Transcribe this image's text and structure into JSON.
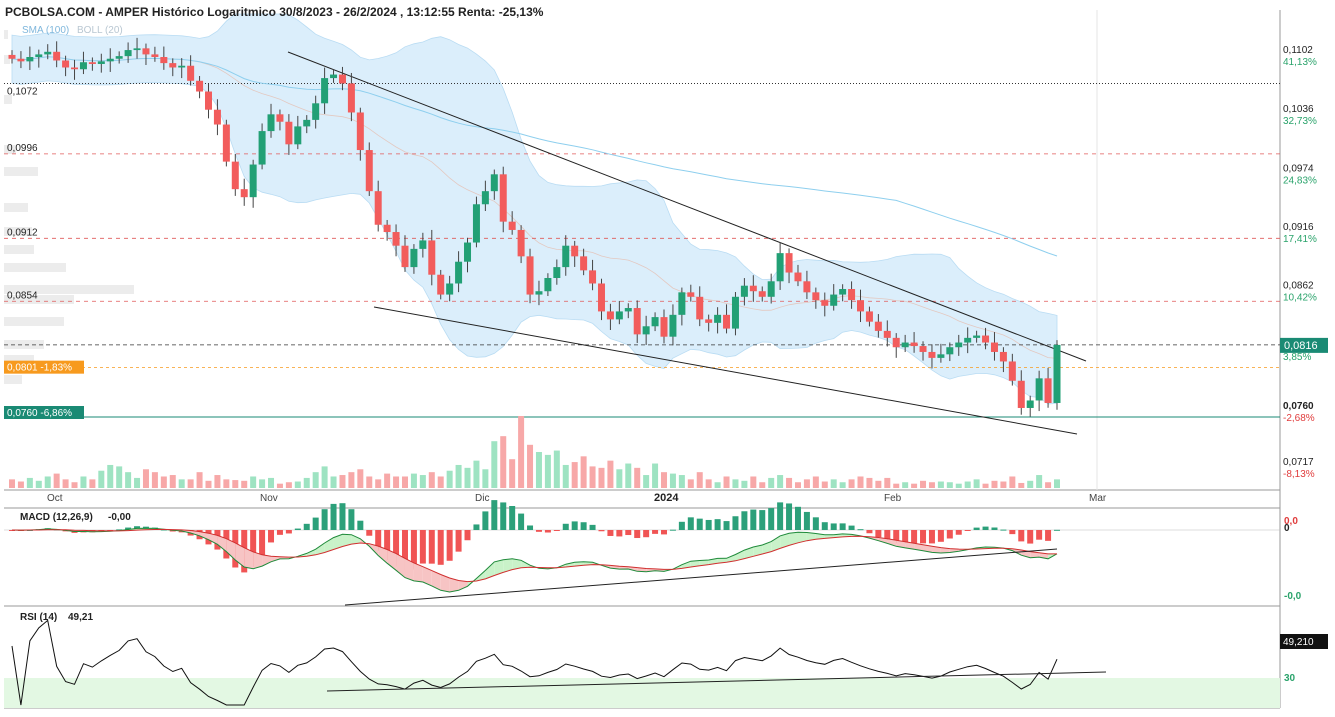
{
  "header": {
    "title": "PCBOLSA.COM - AMPER Histórico Logaritmico 30/8/2023 - 26/2/2024 , 13:12:55 Renta: -25,13%"
  },
  "colors": {
    "up": "#22a075",
    "down": "#f25c5c",
    "band_fill": "#dbeefb",
    "sma": "#8ecfee",
    "teal_line": "#1a8a74",
    "orange_tag": "#f79a1e",
    "pos_pct": "#2aa36b",
    "neg_pct": "#e03c3c",
    "macd_pos": "#2ca07a",
    "macd_neg": "#f05454",
    "rsi_zone": "#e3f8e3"
  },
  "chart_data": [
    {
      "type": "candlestick",
      "title": "PCBOLSA.COM - AMPER Histórico Logaritmico 30/8/2023 - 26/2/2024 , 13:12:55 Renta: -25,13%",
      "scale": "log",
      "legend": [
        "SMA (100)",
        "BOLL (20)"
      ],
      "x_labels": [
        "Oct",
        "Nov",
        "Dic",
        "2024",
        "Feb",
        "Mar"
      ],
      "ylim": [
        0.0712,
        0.113
      ],
      "y_ticks": [
        {
          "value": 0.1102,
          "label": "0,1102",
          "pct": "41,13%"
        },
        {
          "value": 0.1036,
          "label": "0,1036",
          "pct": "32,73%"
        },
        {
          "value": 0.0974,
          "label": "0,0974",
          "pct": "24,83%"
        },
        {
          "value": 0.0916,
          "label": "0,0916",
          "pct": "17,41%"
        },
        {
          "value": 0.0862,
          "label": "0,0862",
          "pct": "10,42%"
        },
        {
          "value": 0.076,
          "label": "0,0760",
          "pct": "-2,68%"
        },
        {
          "value": 0.0717,
          "label": "0,0717",
          "pct": "-8,13%"
        }
      ],
      "levels": [
        {
          "value": 0.1072,
          "label": "0,1072",
          "style": "dotted"
        },
        {
          "value": 0.0996,
          "label": "0,0996",
          "style": "dashed"
        },
        {
          "value": 0.0912,
          "label": "0,0912",
          "style": "dashed"
        },
        {
          "value": 0.0854,
          "label": "0,0854",
          "style": "dashed"
        },
        {
          "value": 0.0816,
          "label": "0,0816",
          "style": "current"
        },
        {
          "value": 0.0801,
          "label": "0,0801 -1,83%",
          "style": "orange"
        },
        {
          "value": 0.076,
          "label": "0,0760 -6,86%",
          "style": "teal"
        }
      ],
      "last_price": "0,0816",
      "last_pct": "3,85%",
      "close": [
        0.11,
        0.1097,
        0.1102,
        0.1105,
        0.1108,
        0.1098,
        0.109,
        0.1088,
        0.1096,
        0.1094,
        0.1097,
        0.11,
        0.1103,
        0.111,
        0.1112,
        0.1105,
        0.1102,
        0.1095,
        0.109,
        0.1092,
        0.1075,
        0.1063,
        0.1043,
        0.1027,
        0.0988,
        0.096,
        0.0952,
        0.0985,
        0.102,
        0.1038,
        0.103,
        0.1006,
        0.1025,
        0.1032,
        0.105,
        0.1078,
        0.1082,
        0.1072,
        0.104,
        0.1,
        0.0958,
        0.0925,
        0.0918,
        0.0905,
        0.0885,
        0.0902,
        0.091,
        0.0878,
        0.086,
        0.087,
        0.089,
        0.0908,
        0.0945,
        0.0958,
        0.0975,
        0.0928,
        0.092,
        0.0895,
        0.086,
        0.0863,
        0.0875,
        0.0885,
        0.0905,
        0.0895,
        0.0882,
        0.087,
        0.0845,
        0.0838,
        0.0845,
        0.0848,
        0.0825,
        0.0832,
        0.084,
        0.0823,
        0.0842,
        0.0862,
        0.0858,
        0.0838,
        0.0835,
        0.0842,
        0.083,
        0.0858,
        0.0868,
        0.0863,
        0.0858,
        0.0872,
        0.0898,
        0.088,
        0.0872,
        0.0862,
        0.0855,
        0.085,
        0.086,
        0.0865,
        0.0855,
        0.0845,
        0.0836,
        0.0828,
        0.0822,
        0.0814,
        0.0818,
        0.0815,
        0.081,
        0.0805,
        0.0808,
        0.0814,
        0.0818,
        0.0822,
        0.0824,
        0.0818,
        0.081,
        0.0802,
        0.0786,
        0.0764,
        0.077,
        0.0788,
        0.0768,
        0.0816
      ],
      "volume": [
        1.2,
        0.9,
        1.4,
        1.0,
        1.6,
        2.0,
        1.2,
        0.8,
        1.6,
        1.2,
        2.4,
        3.2,
        3.0,
        2.2,
        1.4,
        2.6,
        2.2,
        1.6,
        1.8,
        1.2,
        1.2,
        2.2,
        1.0,
        1.8,
        1.2,
        1.1,
        1.0,
        1.6,
        1.2,
        1.4,
        0.6,
        0.8,
        0.9,
        1.4,
        2.2,
        3.0,
        1.6,
        1.8,
        2.2,
        2.6,
        1.6,
        1.2,
        2.0,
        1.6,
        1.6,
        2.0,
        1.8,
        2.2,
        1.6,
        2.4,
        3.2,
        2.8,
        3.8,
        2.6,
        6.5,
        7.2,
        4.0,
        10.0,
        6.0,
        5.0,
        4.6,
        5.2,
        3.2,
        3.6,
        4.4,
        3.0,
        2.8,
        3.8,
        2.6,
        3.4,
        2.8,
        1.8,
        3.4,
        2.2,
        2.0,
        1.8,
        1.2,
        2.2,
        1.2,
        0.8,
        1.6,
        1.2,
        1.0,
        1.6,
        0.8,
        1.4,
        1.8,
        1.4,
        0.8,
        1.2,
        1.6,
        0.9,
        1.2,
        0.8,
        1.2,
        1.6,
        1.4,
        1.0,
        1.4,
        0.6,
        0.8,
        0.6,
        1.0,
        0.8,
        0.9,
        0.8,
        0.6,
        0.9,
        1.2,
        0.6,
        1.0,
        0.9,
        1.6,
        0.7,
        1.0,
        1.8,
        0.8,
        1.2
      ]
    },
    {
      "type": "bar",
      "title": "MACD (12,26,9)",
      "current": "-0,00",
      "y_ticks": [
        "0,0",
        "0",
        "-0,0"
      ]
    },
    {
      "type": "line",
      "title": "RSI (14)",
      "current": "49,21",
      "last_tag": "49,210",
      "threshold": "30"
    }
  ]
}
